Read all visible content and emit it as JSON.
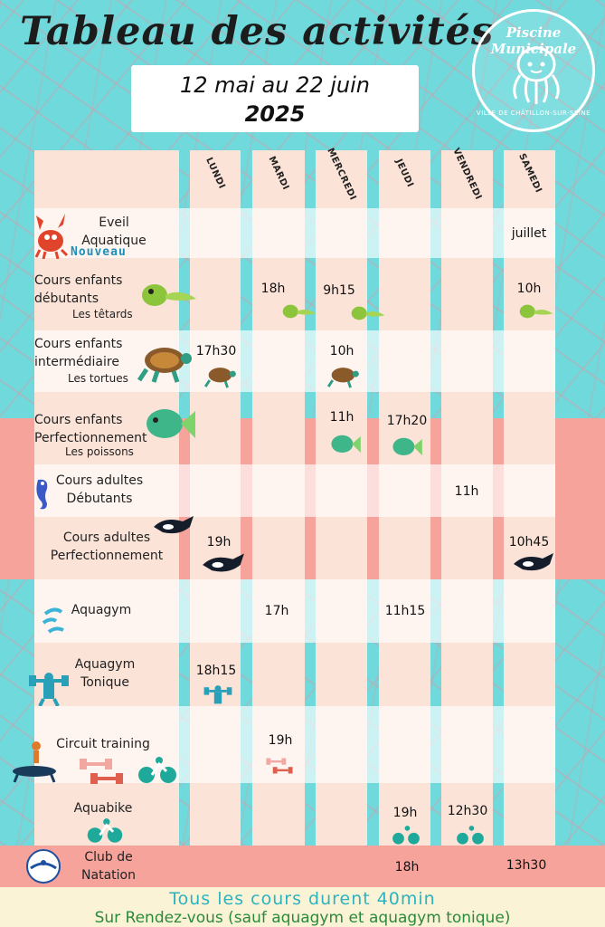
{
  "title": "Tableau des activités",
  "dates": {
    "line1": "12 mai au 22 juin",
    "line2": "2025"
  },
  "logo": {
    "text_top": "Piscine Municipale",
    "text_bottom": "VILLE DE CHÂTILLON-SUR-SEINE",
    "icon": "octopus-icon"
  },
  "days": [
    "LUNDI",
    "MARDI",
    "MERCREDI",
    "JEUDI",
    "VENDREDI",
    "SAMEDI"
  ],
  "activities": {
    "eveil": {
      "line1": "Eveil",
      "line2": "Aquatique",
      "badge": "Nouveau",
      "icon": "crab-icon",
      "samedi": "juillet"
    },
    "enfants_debutants": {
      "line1": "Cours enfants",
      "line2": "débutants",
      "sub": "Les têtards",
      "icon": "tadpole-icon",
      "mardi": "18h",
      "mercredi": "9h15",
      "samedi": "10h"
    },
    "enfants_intermediaire": {
      "line1": "Cours enfants",
      "line2": "intermédiaire",
      "sub": "Les tortues",
      "icon": "turtle-icon",
      "lundi": "17h30",
      "mercredi": "10h"
    },
    "enfants_perf": {
      "line1": "Cours enfants",
      "line2": "Perfectionnement",
      "sub": "Les poissons",
      "icon": "fish-icon",
      "mercredi": "11h",
      "jeudi": "17h20"
    },
    "adultes_debutants": {
      "line1": "Cours adultes",
      "line2": "Débutants",
      "icon": "seahorse-icon",
      "vendredi": "11h"
    },
    "adultes_perf": {
      "line1": "Cours adultes",
      "line2": "Perfectionnement",
      "icon": "orca-icon",
      "lundi": "19h",
      "samedi": "10h45"
    },
    "aquagym": {
      "line1": "Aquagym",
      "icon": "splash-icon",
      "mardi": "17h",
      "jeudi": "11h15"
    },
    "aquagym_tonique": {
      "line1": "Aquagym",
      "line2": "Tonique",
      "icon": "weightlifter-icon",
      "lundi": "18h15"
    },
    "circuit": {
      "line1": "Circuit training",
      "icon": "dumbbell-icon",
      "mardi": "19h"
    },
    "aquabike": {
      "line1": "Aquabike",
      "icon": "bike-icon",
      "jeudi": "19h",
      "vendredi": "12h30"
    },
    "club": {
      "line1": "Club de",
      "line2": "Natation",
      "logo_text": "ACSN NATATION CHÂTILLON-SUR-SEINE",
      "jeudi": "18h",
      "samedi": "13h30"
    }
  },
  "footer": {
    "line1": "Tous les cours durent 40min",
    "line2": "Sur Rendez-vous (sauf aquagym et aquagym tonique)"
  },
  "colors": {
    "turquoise": "#6fd9dc",
    "coral": "#f6a39b",
    "peach": "#fbe3d8",
    "cream": "#fbf3d6",
    "footer_blue": "#2bb3c0",
    "footer_green": "#2a8a3a"
  }
}
